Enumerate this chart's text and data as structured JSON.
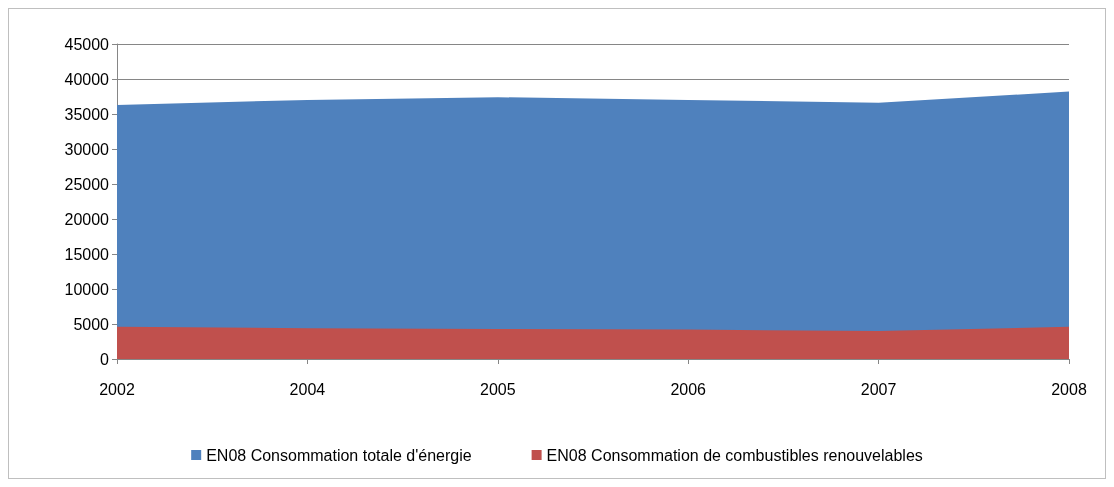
{
  "chart_data": {
    "type": "area",
    "categories": [
      "2002",
      "2004",
      "2005",
      "2006",
      "2007",
      "2008"
    ],
    "series": [
      {
        "name": "EN08 Consommation totale d'énergie",
        "color": "#4f81bd",
        "values": [
          36300,
          37000,
          37400,
          37000,
          36600,
          38200
        ]
      },
      {
        "name": "EN08 Consommation de combustibles renouvelables",
        "color": "#c0504d",
        "values": [
          4600,
          4400,
          4300,
          4200,
          4000,
          4600
        ]
      }
    ],
    "ylim": [
      0,
      45000
    ],
    "yticks": [
      0,
      5000,
      10000,
      15000,
      20000,
      25000,
      30000,
      35000,
      40000,
      45000
    ],
    "grid": "y",
    "legend": "bottom"
  }
}
